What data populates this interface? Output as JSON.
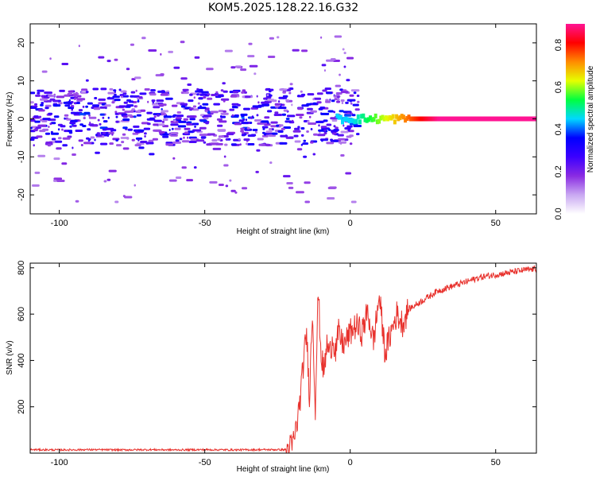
{
  "title": "KOM5.2025.128.22.16.G32",
  "chart_data": [
    {
      "type": "heatmap",
      "xlabel": "Height of straight line (km)",
      "ylabel": "Frequency (Hz)",
      "xlim": [
        -110,
        64
      ],
      "ylim": [
        -25,
        25
      ],
      "xticks": [
        -100,
        -50,
        0,
        50
      ],
      "yticks": [
        -20,
        -10,
        0,
        10,
        20
      ],
      "colorbar": {
        "label": "Normalized spectral amplitude",
        "range": [
          0,
          0.9
        ],
        "ticks": [
          "0.0",
          "0.2",
          "0.4",
          "0.6",
          "0.8"
        ],
        "colormap": [
          "#ffffff",
          "#c9a8f2",
          "#8a2be2",
          "#3b00ff",
          "#0000ff",
          "#00d8ff",
          "#00ff40",
          "#e6ff00",
          "#ff8c00",
          "#ff0000",
          "#ff1493"
        ]
      },
      "grid": false,
      "trend": {
        "noise_band_hz": [
          -7,
          8
        ],
        "noise_amplitude": 0.3,
        "carrier_from_km": -5,
        "carrier_freq_hz": 0,
        "carrier_amplitude_at_0km": 0.45,
        "carrier_amplitude_at_30km": 0.9
      }
    },
    {
      "type": "line",
      "xlabel": "Height of straight line (km)",
      "ylabel": "SNR (v/v)",
      "xlim": [
        -110,
        64
      ],
      "ylim": [
        0,
        820
      ],
      "xticks": [
        -100,
        -50,
        0,
        50
      ],
      "yticks": [
        200,
        400,
        600,
        800
      ],
      "series": [
        {
          "color": "#e8322d",
          "x": [
            -110,
            -100,
            -90,
            -80,
            -70,
            -60,
            -50,
            -40,
            -30,
            -22,
            -20,
            -19,
            -18,
            -17,
            -16,
            -15,
            -14,
            -13,
            -12,
            -11,
            -10,
            -9,
            -8,
            -7,
            -6,
            -5,
            -4,
            -3,
            -2,
            0,
            2,
            4,
            6,
            8,
            10,
            12,
            14,
            16,
            18,
            20,
            25,
            30,
            35,
            40,
            45,
            50,
            55,
            60,
            64
          ],
          "y": [
            15,
            14,
            15,
            14,
            15,
            14,
            15,
            14,
            15,
            15,
            30,
            80,
            150,
            260,
            400,
            520,
            250,
            620,
            200,
            700,
            420,
            350,
            470,
            430,
            500,
            440,
            520,
            480,
            470,
            520,
            550,
            520,
            610,
            480,
            680,
            430,
            520,
            600,
            560,
            620,
            660,
            700,
            720,
            740,
            760,
            770,
            780,
            790,
            795
          ]
        }
      ]
    }
  ]
}
